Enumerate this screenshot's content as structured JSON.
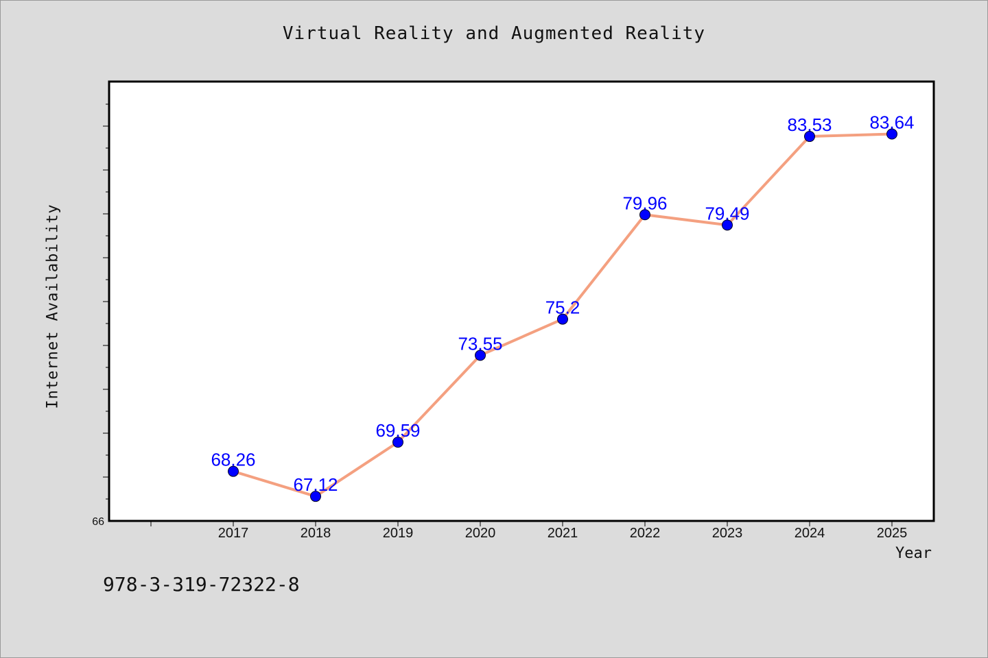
{
  "chart_data": {
    "type": "line",
    "title": "Virtual Reality and Augmented Reality",
    "xlabel": "Year",
    "ylabel": "Internet Availability",
    "categories": [
      "2017",
      "2018",
      "2019",
      "2020",
      "2021",
      "2022",
      "2023",
      "2024",
      "2025"
    ],
    "values": [
      68.26,
      67.12,
      69.59,
      73.55,
      75.2,
      79.96,
      79.49,
      83.53,
      83.64
    ],
    "data_labels": [
      "68.26",
      "67.12",
      "69.59",
      "73.55",
      "75.2",
      "79.96",
      "79.49",
      "83.53",
      "83.64"
    ],
    "ylim": [
      66,
      86
    ],
    "y_tick_labels": [
      "66"
    ],
    "grid": false,
    "line_color": "#f4a080",
    "marker_color": "#0000ff",
    "label_color": "#0000ff"
  },
  "footnote": "978-3-319-72322-8"
}
